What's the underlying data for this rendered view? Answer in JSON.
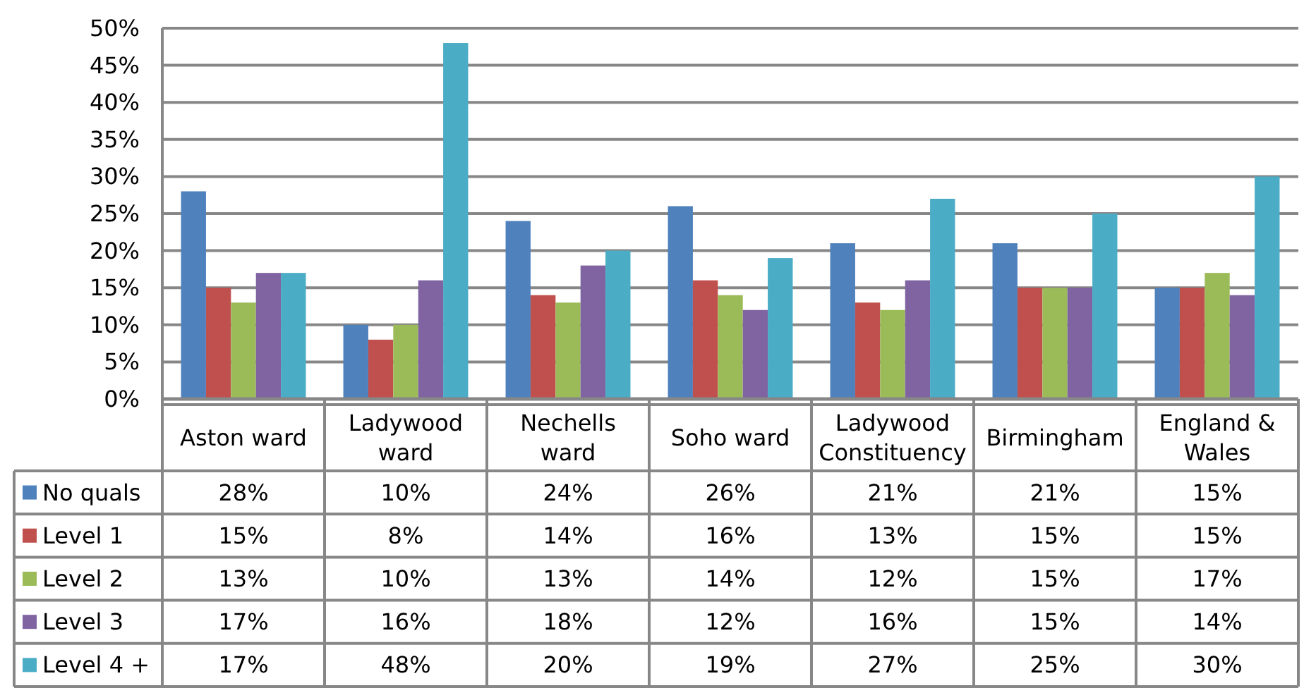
{
  "chart_data": {
    "type": "bar",
    "categories": [
      "Aston ward",
      "Ladywood ward",
      "Nechells ward",
      "Soho ward",
      "Ladywood Constituency",
      "Birmingham",
      "England & Wales"
    ],
    "series": [
      {
        "name": "No quals",
        "color": "#4f81bd",
        "values": [
          28,
          10,
          24,
          26,
          21,
          21,
          15
        ],
        "value_labels": [
          "28%",
          "10%",
          "24%",
          "26%",
          "21%",
          "21%",
          "15%"
        ]
      },
      {
        "name": "Level 1",
        "color": "#c0504d",
        "values": [
          15,
          8,
          14,
          16,
          13,
          15,
          15
        ],
        "value_labels": [
          "15%",
          "8%",
          "14%",
          "16%",
          "13%",
          "15%",
          "15%"
        ]
      },
      {
        "name": "Level 2",
        "color": "#9bbb59",
        "values": [
          13,
          10,
          13,
          14,
          12,
          15,
          17
        ],
        "value_labels": [
          "13%",
          "10%",
          "13%",
          "14%",
          "12%",
          "15%",
          "17%"
        ]
      },
      {
        "name": "Level 3",
        "color": "#8064a2",
        "values": [
          17,
          16,
          18,
          12,
          16,
          15,
          14
        ],
        "value_labels": [
          "17%",
          "16%",
          "18%",
          "12%",
          "16%",
          "15%",
          "14%"
        ]
      },
      {
        "name": "Level 4 +",
        "color": "#4bacc6",
        "values": [
          17,
          48,
          20,
          19,
          27,
          25,
          30
        ],
        "value_labels": [
          "17%",
          "48%",
          "20%",
          "19%",
          "27%",
          "25%",
          "30%"
        ]
      }
    ],
    "ylim": [
      0,
      50
    ],
    "yticks": [
      {
        "value": 0,
        "label": "0%"
      },
      {
        "value": 5,
        "label": "5%"
      },
      {
        "value": 10,
        "label": "10%"
      },
      {
        "value": 15,
        "label": "15%"
      },
      {
        "value": 20,
        "label": "20%"
      },
      {
        "value": 25,
        "label": "25%"
      },
      {
        "value": 30,
        "label": "30%"
      },
      {
        "value": 35,
        "label": "35%"
      },
      {
        "value": 40,
        "label": "40%"
      },
      {
        "value": 45,
        "label": "45%"
      },
      {
        "value": 50,
        "label": "50%"
      }
    ],
    "grid": "y",
    "legend": "bottom"
  }
}
